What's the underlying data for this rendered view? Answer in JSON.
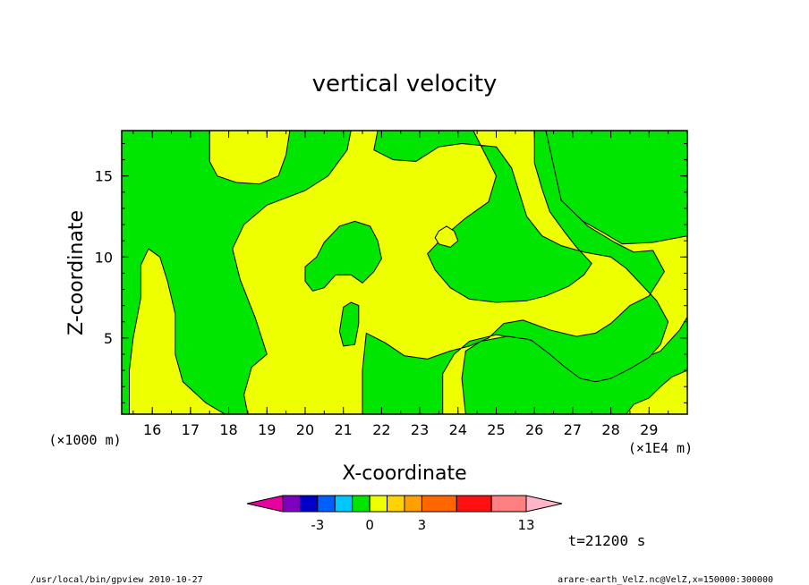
{
  "chart_data": {
    "type": "heatmap",
    "title": "vertical velocity",
    "xlabel": "X-coordinate",
    "ylabel": "Z-coordinate",
    "x_unit_note": "(×1E4 m)",
    "y_unit_note": "(×1000 m)",
    "xlim": [
      15.2,
      30.0
    ],
    "ylim": [
      0.3,
      17.8
    ],
    "x_ticks": [
      16,
      17,
      18,
      19,
      20,
      21,
      22,
      23,
      24,
      25,
      26,
      27,
      28,
      29
    ],
    "y_ticks": [
      5,
      10,
      15
    ],
    "x_minor_step": 0.5,
    "y_minor_step": 1,
    "fill_colors": {
      "negative": "#00e600",
      "positive": "#eeff00"
    },
    "regions": [
      {
        "name": "green-top-left",
        "sign": "negative",
        "points": [
          [
            15.2,
            17.8
          ],
          [
            17.5,
            17.8
          ],
          [
            17.5,
            15.9
          ],
          [
            17.7,
            15.0
          ],
          [
            18.2,
            14.6
          ],
          [
            18.8,
            14.5
          ],
          [
            19.3,
            15.0
          ],
          [
            19.5,
            16.3
          ],
          [
            19.6,
            17.8
          ],
          [
            21.2,
            17.8
          ],
          [
            21.1,
            16.6
          ],
          [
            20.6,
            15.0
          ],
          [
            20.0,
            14.1
          ],
          [
            19.0,
            13.2
          ],
          [
            18.4,
            12.0
          ],
          [
            18.1,
            10.5
          ],
          [
            18.3,
            8.6
          ],
          [
            18.7,
            6.2
          ],
          [
            19.0,
            4.0
          ],
          [
            18.6,
            3.2
          ],
          [
            18.4,
            1.5
          ],
          [
            18.5,
            0.3
          ],
          [
            17.9,
            0.3
          ],
          [
            17.4,
            1.0
          ],
          [
            16.8,
            2.3
          ],
          [
            16.6,
            4.0
          ],
          [
            16.6,
            6.5
          ],
          [
            16.4,
            8.5
          ],
          [
            16.2,
            10.0
          ],
          [
            15.9,
            10.5
          ],
          [
            15.7,
            9.5
          ],
          [
            15.7,
            7.5
          ],
          [
            15.5,
            5.0
          ],
          [
            15.4,
            3.0
          ],
          [
            15.4,
            0.3
          ],
          [
            15.2,
            0.3
          ]
        ]
      },
      {
        "name": "green-top-right",
        "sign": "negative",
        "points": [
          [
            26.3,
            17.8
          ],
          [
            30.0,
            17.8
          ],
          [
            30.0,
            11.3
          ],
          [
            29.1,
            10.9
          ],
          [
            28.3,
            10.8
          ],
          [
            27.8,
            11.5
          ],
          [
            27.2,
            12.3
          ],
          [
            26.7,
            13.3
          ],
          [
            26.3,
            14.0
          ],
          [
            26.1,
            15.5
          ],
          [
            26.3,
            17.0
          ]
        ]
      },
      {
        "name": "green-center-bottom",
        "sign": "negative",
        "points": [
          [
            30.0,
            3.0
          ],
          [
            29.6,
            2.6
          ],
          [
            29.3,
            2.0
          ],
          [
            29.0,
            1.3
          ],
          [
            28.6,
            0.9
          ],
          [
            28.4,
            0.3
          ],
          [
            24.2,
            0.3
          ],
          [
            24.1,
            2.5
          ],
          [
            24.2,
            4.2
          ],
          [
            24.6,
            4.8
          ],
          [
            25.5,
            5.2
          ],
          [
            26.3,
            4.5
          ],
          [
            26.8,
            3.4
          ],
          [
            27.3,
            2.6
          ],
          [
            27.7,
            2.4
          ],
          [
            28.1,
            2.8
          ],
          [
            28.6,
            3.5
          ],
          [
            29.3,
            4.2
          ],
          [
            29.8,
            5.5
          ],
          [
            30.0,
            6.3
          ]
        ]
      },
      {
        "name": "green-center-wide",
        "sign": "negative",
        "points": [
          [
            21.9,
            17.8
          ],
          [
            24.4,
            17.8
          ],
          [
            24.7,
            16.4
          ],
          [
            25.0,
            15.0
          ],
          [
            24.8,
            13.4
          ],
          [
            24.2,
            12.4
          ],
          [
            23.6,
            11.2
          ],
          [
            23.2,
            10.2
          ],
          [
            23.4,
            9.2
          ],
          [
            23.8,
            8.1
          ],
          [
            24.3,
            7.4
          ],
          [
            25.0,
            7.2
          ],
          [
            25.8,
            7.3
          ],
          [
            26.3,
            7.6
          ],
          [
            26.9,
            8.2
          ],
          [
            27.3,
            8.9
          ],
          [
            27.5,
            9.6
          ],
          [
            27.1,
            10.6
          ],
          [
            26.8,
            11.5
          ],
          [
            26.4,
            12.8
          ],
          [
            26.2,
            14.2
          ],
          [
            26.0,
            15.8
          ],
          [
            26.0,
            17.8
          ],
          [
            26.3,
            17.8
          ],
          [
            26.7,
            13.5
          ],
          [
            27.4,
            11.9
          ],
          [
            28.1,
            10.9
          ],
          [
            28.6,
            10.3
          ],
          [
            29.1,
            10.4
          ],
          [
            29.4,
            9.1
          ],
          [
            29.0,
            7.6
          ],
          [
            28.5,
            7.0
          ],
          [
            28.0,
            5.9
          ],
          [
            27.6,
            5.3
          ],
          [
            27.1,
            5.1
          ],
          [
            26.4,
            5.5
          ],
          [
            25.7,
            6.1
          ],
          [
            25.2,
            5.9
          ],
          [
            24.8,
            5.0
          ],
          [
            24.3,
            4.5
          ],
          [
            23.8,
            4.2
          ],
          [
            23.2,
            3.7
          ],
          [
            22.6,
            3.9
          ],
          [
            22.1,
            4.7
          ],
          [
            21.6,
            5.3
          ],
          [
            21.5,
            3.0
          ],
          [
            21.5,
            0.3
          ],
          [
            23.6,
            0.3
          ],
          [
            23.6,
            2.8
          ],
          [
            23.9,
            4.0
          ],
          [
            24.3,
            4.8
          ],
          [
            25.0,
            5.2
          ],
          [
            25.9,
            4.9
          ],
          [
            26.4,
            4.0
          ],
          [
            26.8,
            3.2
          ],
          [
            27.2,
            2.5
          ],
          [
            27.6,
            2.3
          ],
          [
            28.0,
            2.5
          ],
          [
            28.5,
            3.1
          ],
          [
            29.0,
            3.8
          ],
          [
            29.3,
            4.6
          ],
          [
            29.5,
            6.0
          ],
          [
            29.2,
            7.3
          ],
          [
            28.8,
            8.3
          ],
          [
            28.4,
            9.3
          ],
          [
            28.0,
            10.0
          ],
          [
            27.3,
            10.3
          ],
          [
            26.7,
            10.7
          ],
          [
            26.2,
            11.3
          ],
          [
            25.8,
            12.5
          ],
          [
            25.6,
            14.0
          ],
          [
            25.4,
            15.5
          ],
          [
            25.0,
            16.8
          ],
          [
            24.1,
            17.0
          ],
          [
            23.5,
            16.8
          ],
          [
            22.9,
            15.9
          ],
          [
            22.3,
            16.0
          ],
          [
            21.8,
            16.6
          ]
        ]
      },
      {
        "name": "green-blob-center",
        "sign": "negative",
        "points": [
          [
            20.0,
            9.4
          ],
          [
            20.3,
            10.0
          ],
          [
            20.5,
            10.9
          ],
          [
            20.9,
            11.9
          ],
          [
            21.3,
            12.2
          ],
          [
            21.7,
            11.9
          ],
          [
            21.9,
            11.0
          ],
          [
            22.0,
            9.9
          ],
          [
            21.8,
            9.1
          ],
          [
            21.5,
            8.4
          ],
          [
            21.2,
            8.9
          ],
          [
            20.8,
            8.9
          ],
          [
            20.5,
            8.1
          ],
          [
            20.2,
            7.9
          ],
          [
            20.0,
            8.5
          ]
        ]
      },
      {
        "name": "green-blob-small",
        "sign": "negative",
        "points": [
          [
            21.0,
            6.9
          ],
          [
            21.2,
            7.2
          ],
          [
            21.4,
            7.0
          ],
          [
            21.4,
            5.9
          ],
          [
            21.3,
            4.6
          ],
          [
            21.0,
            4.5
          ],
          [
            20.9,
            5.4
          ]
        ]
      },
      {
        "name": "yellow-blob-small",
        "sign": "positive",
        "points": [
          [
            23.5,
            11.6
          ],
          [
            23.7,
            11.9
          ],
          [
            23.9,
            11.6
          ],
          [
            24.0,
            11.0
          ],
          [
            23.8,
            10.6
          ],
          [
            23.5,
            10.8
          ],
          [
            23.4,
            11.2
          ]
        ]
      }
    ],
    "colorbar": {
      "colors": [
        "#e600a0",
        "#8000c0",
        "#0000c8",
        "#0060ff",
        "#00c8ff",
        "#00e600",
        "#eeff00",
        "#ffd200",
        "#ffa000",
        "#ff6600",
        "#ff1010",
        "#ff8080",
        "#ffb4c8"
      ],
      "bounds": [
        -13,
        -5,
        -4,
        -3,
        -2,
        -1,
        0,
        1,
        2,
        3,
        5,
        8,
        11,
        13
      ],
      "labels": [
        {
          "value": -3,
          "text": "-3"
        },
        {
          "value": 0,
          "text": "0"
        },
        {
          "value": 3,
          "text": "3"
        },
        {
          "value": 13,
          "text": "13"
        }
      ]
    }
  },
  "annotations": {
    "time": "t=21200 s",
    "program": "/usr/local/bin/gpview  2010-10-27",
    "source": "arare-earth_VelZ.nc@VelZ,x=150000:300000"
  }
}
